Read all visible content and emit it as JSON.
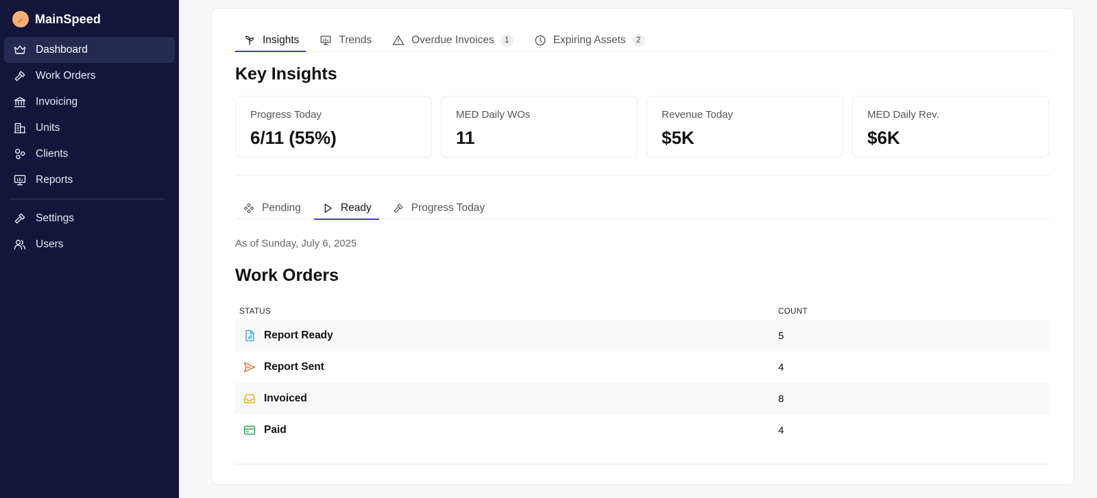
{
  "brand": {
    "name": "MainSpeed",
    "logo_icon": "lightning-logo-icon",
    "logo_color": "#f4b079"
  },
  "sidebar": {
    "items": [
      {
        "label": "Dashboard",
        "icon": "crown-icon",
        "active": true
      },
      {
        "label": "Work Orders",
        "icon": "hammer-icon"
      },
      {
        "label": "Invoicing",
        "icon": "bank-icon"
      },
      {
        "label": "Units",
        "icon": "building-icon"
      },
      {
        "label": "Clients",
        "icon": "circles-icon"
      },
      {
        "label": "Reports",
        "icon": "presentation-icon"
      }
    ],
    "bottom_items": [
      {
        "label": "Settings",
        "icon": "hammer-icon"
      },
      {
        "label": "Users",
        "icon": "users-icon"
      }
    ]
  },
  "tabs": [
    {
      "label": "Insights",
      "icon": "sprout-icon",
      "active": true
    },
    {
      "label": "Trends",
      "icon": "presentation-chart-icon"
    },
    {
      "label": "Overdue Invoices",
      "icon": "warning-triangle-icon",
      "badge": "1"
    },
    {
      "label": "Expiring Assets",
      "icon": "clock-icon",
      "badge": "2"
    }
  ],
  "insights": {
    "title": "Key Insights",
    "stats": [
      {
        "label": "Progress Today",
        "value": "6/11 (55%)"
      },
      {
        "label": "MED Daily WOs",
        "value": "11"
      },
      {
        "label": "Revenue Today",
        "value": "$5K"
      },
      {
        "label": "MED Daily Rev.",
        "value": "$6K"
      }
    ]
  },
  "subtabs": [
    {
      "label": "Pending",
      "icon": "diamond-grid-icon"
    },
    {
      "label": "Ready",
      "icon": "play-icon",
      "active": true
    },
    {
      "label": "Progress Today",
      "icon": "hammer-icon"
    }
  ],
  "work_orders": {
    "as_of": "As of Sunday, July 6, 2025",
    "title": "Work Orders",
    "columns": {
      "status": "STATUS",
      "count": "COUNT"
    },
    "rows": [
      {
        "status": "Report Ready",
        "count": "5",
        "icon": "file-chart-icon",
        "color": "#2aa7d8"
      },
      {
        "status": "Report Sent",
        "count": "4",
        "icon": "send-icon",
        "color": "#f06a2c"
      },
      {
        "status": "Invoiced",
        "count": "8",
        "icon": "inbox-icon",
        "color": "#e9b21b"
      },
      {
        "status": "Paid",
        "count": "4",
        "icon": "credit-card-icon",
        "color": "#17a34a"
      }
    ]
  },
  "colors": {
    "sidebar_bg": "#13153b",
    "sidebar_active": "#262a52",
    "accent": "#3b3fb8"
  }
}
